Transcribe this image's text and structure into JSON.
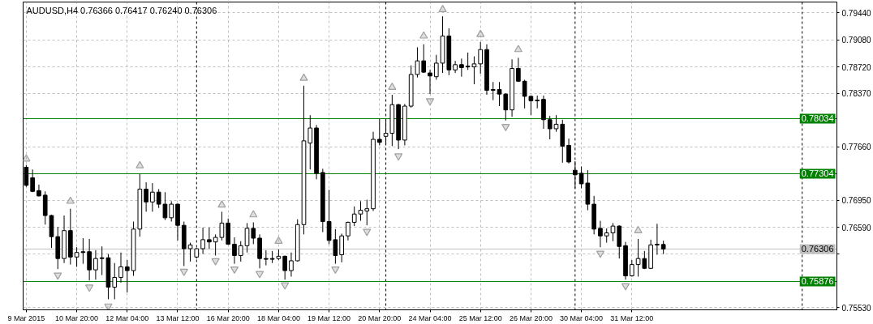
{
  "chart_data": {
    "type": "candlestick",
    "title": "AUDUSD,H4 0.76366 0.76417 0.76240 0.76306",
    "color": "#000000",
    "categories": [
      "9 Mar 2015",
      null,
      null,
      null,
      null,
      null,
      null,
      null,
      "10 Mar 20:00",
      null,
      null,
      null,
      null,
      null,
      null,
      null,
      "12 Mar 04:00",
      null,
      null,
      null,
      null,
      null,
      null,
      null,
      "13 Mar 12:00",
      null,
      null,
      null,
      null,
      null,
      null,
      null,
      "16 Mar 20:00",
      null,
      null,
      null,
      null,
      null,
      null,
      null,
      "18 Mar 04:00",
      null,
      null,
      null,
      null,
      null,
      null,
      null,
      "19 Mar 12:00",
      null,
      null,
      null,
      null,
      null,
      null,
      null,
      "20 Mar 20:00",
      null,
      null,
      null,
      null,
      null,
      null,
      null,
      "24 Mar 04:00",
      null,
      null,
      null,
      null,
      null,
      null,
      null,
      "25 Mar 12:00",
      null,
      null,
      null,
      null,
      null,
      null,
      null,
      "26 Mar 20:00",
      null,
      null,
      null,
      null,
      null,
      null,
      null,
      "30 Mar 04:00",
      null,
      null,
      null,
      null,
      null,
      null,
      null,
      "31 Mar 12:00",
      null,
      null,
      null,
      null,
      null,
      null,
      null,
      null,
      null,
      null,
      null,
      null,
      null,
      null,
      null,
      null,
      null,
      null,
      null,
      null,
      null,
      null,
      null,
      null,
      null,
      null,
      null,
      null,
      null,
      null,
      null,
      null
    ],
    "ylim": [
      0.755,
      0.7958
    ],
    "yticks": [
      {
        "value": 0.7944,
        "label": "0.79440"
      },
      {
        "value": 0.7908,
        "label": "0.79080"
      },
      {
        "value": 0.7872,
        "label": "0.78720"
      },
      {
        "value": 0.7837,
        "label": "0.78370"
      },
      {
        "value": 0.7766,
        "label": "0.77660"
      },
      {
        "value": 0.7695,
        "label": "0.76950"
      },
      {
        "value": 0.7659,
        "label": "0.76590"
      },
      {
        "value": 0.7624,
        "label": null
      },
      {
        "value": 0.7553,
        "label": "0.75530"
      }
    ],
    "grid": true,
    "ohlc": [
      [
        0.7739,
        0.7742,
        0.7713,
        0.7715
      ],
      [
        0.7725,
        0.7736,
        0.7706,
        0.7707
      ],
      [
        0.7708,
        0.7716,
        0.77,
        0.7701
      ],
      [
        0.7702,
        0.7707,
        0.7663,
        0.7675
      ],
      [
        0.7675,
        0.7676,
        0.7632,
        0.7647
      ],
      [
        0.7647,
        0.766,
        0.7604,
        0.7618
      ],
      [
        0.7618,
        0.7675,
        0.7612,
        0.7655
      ],
      [
        0.7655,
        0.7684,
        0.761,
        0.762
      ],
      [
        0.762,
        0.7633,
        0.7607,
        0.7626
      ],
      [
        0.7627,
        0.7645,
        0.7611,
        0.7626
      ],
      [
        0.7627,
        0.7644,
        0.7589,
        0.7603
      ],
      [
        0.7603,
        0.7629,
        0.759,
        0.7618
      ],
      [
        0.7619,
        0.7634,
        0.7596,
        0.7618
      ],
      [
        0.7619,
        0.7624,
        0.7564,
        0.758
      ],
      [
        0.758,
        0.7612,
        0.7564,
        0.7593
      ],
      [
        0.7593,
        0.7626,
        0.7586,
        0.7607
      ],
      [
        0.7607,
        0.7616,
        0.7573,
        0.7602
      ],
      [
        0.7602,
        0.7667,
        0.7595,
        0.7657
      ],
      [
        0.7657,
        0.773,
        0.7647,
        0.771
      ],
      [
        0.771,
        0.7719,
        0.768,
        0.7693
      ],
      [
        0.7693,
        0.7718,
        0.768,
        0.7706
      ],
      [
        0.7706,
        0.771,
        0.7685,
        0.769
      ],
      [
        0.769,
        0.7706,
        0.7669,
        0.7672
      ],
      [
        0.7672,
        0.7694,
        0.7667,
        0.769
      ],
      [
        0.769,
        0.7691,
        0.7642,
        0.7662
      ],
      [
        0.7662,
        0.7667,
        0.7608,
        0.7631
      ],
      [
        0.7631,
        0.7639,
        0.7614,
        0.7636
      ],
      [
        0.762,
        0.7632,
        0.7618,
        0.7631
      ],
      [
        0.7631,
        0.7659,
        0.7624,
        0.7643
      ],
      [
        0.7643,
        0.7659,
        0.7631,
        0.764
      ],
      [
        0.764,
        0.765,
        0.7622,
        0.7646
      ],
      [
        0.7646,
        0.768,
        0.7642,
        0.7665
      ],
      [
        0.7665,
        0.7671,
        0.7636,
        0.7637
      ],
      [
        0.7637,
        0.7646,
        0.7611,
        0.7622
      ],
      [
        0.7622,
        0.7641,
        0.7614,
        0.7635
      ],
      [
        0.7635,
        0.7665,
        0.7626,
        0.7658
      ],
      [
        0.7658,
        0.7666,
        0.7637,
        0.7645
      ],
      [
        0.7645,
        0.765,
        0.7605,
        0.7618
      ],
      [
        0.7618,
        0.7629,
        0.7609,
        0.7617
      ],
      [
        0.7618,
        0.7628,
        0.7612,
        0.7617
      ],
      [
        0.7618,
        0.763,
        0.7616,
        0.7621
      ],
      [
        0.7621,
        0.7622,
        0.759,
        0.7602
      ],
      [
        0.7602,
        0.7626,
        0.7594,
        0.7615
      ],
      [
        0.7615,
        0.767,
        0.7614,
        0.7663
      ],
      [
        0.7663,
        0.7847,
        0.765,
        0.7774
      ],
      [
        0.7771,
        0.7808,
        0.7736,
        0.7791
      ],
      [
        0.7791,
        0.7795,
        0.7723,
        0.7731
      ],
      [
        0.7732,
        0.7737,
        0.7653,
        0.7667
      ],
      [
        0.7667,
        0.7709,
        0.7637,
        0.7642
      ],
      [
        0.7643,
        0.7657,
        0.7611,
        0.7622
      ],
      [
        0.7623,
        0.7651,
        0.7613,
        0.7648
      ],
      [
        0.7648,
        0.7667,
        0.7642,
        0.7666
      ],
      [
        0.7666,
        0.7687,
        0.7661,
        0.7677
      ],
      [
        0.7677,
        0.7694,
        0.7668,
        0.7682
      ],
      [
        0.7681,
        0.7696,
        0.7662,
        0.7684
      ],
      [
        0.7684,
        0.7786,
        0.7681,
        0.7776
      ],
      [
        0.7776,
        0.7803,
        0.7768,
        0.7772
      ],
      [
        0.778,
        0.7803,
        0.7769,
        0.7784
      ],
      [
        0.7784,
        0.7835,
        0.7767,
        0.7822
      ],
      [
        0.7822,
        0.7823,
        0.7763,
        0.7775
      ],
      [
        0.7775,
        0.7823,
        0.7768,
        0.782
      ],
      [
        0.782,
        0.7874,
        0.7818,
        0.7862
      ],
      [
        0.7862,
        0.7898,
        0.7858,
        0.788
      ],
      [
        0.788,
        0.7902,
        0.7864,
        0.7865
      ],
      [
        0.7864,
        0.7868,
        0.7836,
        0.786
      ],
      [
        0.7859,
        0.7888,
        0.7855,
        0.7877
      ],
      [
        0.7877,
        0.7939,
        0.7864,
        0.7913
      ],
      [
        0.7913,
        0.7923,
        0.7861,
        0.7868
      ],
      [
        0.7868,
        0.788,
        0.7864,
        0.7875
      ],
      [
        0.7875,
        0.7883,
        0.7859,
        0.7871
      ],
      [
        0.7873,
        0.7891,
        0.7868,
        0.7872
      ],
      [
        0.7872,
        0.7886,
        0.7849,
        0.7876
      ],
      [
        0.7876,
        0.7905,
        0.7863,
        0.7895
      ],
      [
        0.7895,
        0.7902,
        0.7835,
        0.7841
      ],
      [
        0.7842,
        0.7852,
        0.7828,
        0.7841
      ],
      [
        0.7842,
        0.7852,
        0.782,
        0.7836
      ],
      [
        0.7836,
        0.7837,
        0.7801,
        0.7815
      ],
      [
        0.7815,
        0.7882,
        0.7806,
        0.787
      ],
      [
        0.787,
        0.7884,
        0.7852,
        0.7853
      ],
      [
        0.7853,
        0.7855,
        0.7817,
        0.7833
      ],
      [
        0.7833,
        0.7834,
        0.7808,
        0.7827
      ],
      [
        0.7828,
        0.7834,
        0.7817,
        0.7827
      ],
      [
        0.7829,
        0.7834,
        0.779,
        0.7802
      ],
      [
        0.7802,
        0.7807,
        0.7776,
        0.779
      ],
      [
        0.779,
        0.7808,
        0.7786,
        0.7796
      ],
      [
        0.7796,
        0.7802,
        0.7745,
        0.7767
      ],
      [
        0.7768,
        0.7777,
        0.7744,
        0.7746
      ],
      [
        0.7735,
        0.7747,
        0.7711,
        0.7729
      ],
      [
        0.7731,
        0.774,
        0.7711,
        0.7717
      ],
      [
        0.7718,
        0.7735,
        0.7682,
        0.769
      ],
      [
        0.769,
        0.7701,
        0.765,
        0.7657
      ],
      [
        0.7658,
        0.7668,
        0.7633,
        0.7648
      ],
      [
        0.7648,
        0.7658,
        0.7639,
        0.7652
      ],
      [
        0.7652,
        0.7665,
        0.7641,
        0.7661
      ],
      [
        0.7661,
        0.7662,
        0.7618,
        0.7634
      ],
      [
        0.7635,
        0.764,
        0.759,
        0.7595
      ],
      [
        0.7595,
        0.7616,
        0.7594,
        0.761
      ],
      [
        0.761,
        0.7644,
        0.7594,
        0.7618
      ],
      [
        0.7618,
        0.7628,
        0.7604,
        0.7605
      ],
      [
        0.7605,
        0.7643,
        0.7604,
        0.7636
      ],
      [
        0.7637,
        0.7664,
        0.7623,
        0.7636
      ],
      [
        0.76366,
        0.76417,
        0.7624,
        0.76306
      ],
      null,
      null,
      null,
      null,
      null,
      null,
      null,
      null,
      null,
      null,
      null,
      null,
      null,
      null,
      null,
      null,
      null,
      null,
      null,
      null,
      null,
      null,
      null,
      null,
      null,
      null,
      null
    ],
    "series": [
      {
        "type": "scatter",
        "marker": "triangle",
        "color": "#a0a0a0",
        "values": [
          0.775,
          null,
          null,
          null,
          null,
          null,
          null,
          0.7694,
          null,
          null,
          null,
          null,
          null,
          null,
          null,
          null,
          null,
          null,
          0.7741,
          null,
          null,
          null,
          null,
          null,
          null,
          null,
          null,
          null,
          null,
          null,
          null,
          0.7689,
          null,
          null,
          null,
          null,
          0.7676,
          null,
          null,
          null,
          0.7641,
          null,
          null,
          null,
          0.7857,
          null,
          null,
          null,
          null,
          null,
          null,
          null,
          null,
          null,
          null,
          null,
          null,
          null,
          0.7845,
          null,
          null,
          null,
          null,
          0.7913,
          null,
          null,
          0.7948,
          null,
          null,
          null,
          null,
          null,
          0.7915,
          null,
          null,
          null,
          null,
          null,
          0.7895,
          null,
          null,
          null,
          null,
          null,
          null,
          null,
          null,
          null,
          null,
          null,
          null,
          null,
          null,
          null,
          null,
          null,
          null,
          0.7655,
          null,
          null,
          null,
          null,
          null,
          null,
          null,
          null,
          null,
          null,
          null,
          null,
          null,
          null,
          null,
          null,
          null,
          null,
          null,
          null,
          null,
          null,
          null,
          null,
          null,
          null,
          null,
          null,
          null,
          null,
          null
        ]
      },
      {
        "type": "scatter",
        "marker": "triangle",
        "color": "#a0a0a0",
        "values": [
          null,
          null,
          null,
          null,
          null,
          0.7596,
          null,
          null,
          null,
          null,
          0.758,
          null,
          null,
          0.7555,
          null,
          null,
          null,
          null,
          null,
          null,
          null,
          null,
          null,
          null,
          null,
          0.7601,
          null,
          null,
          null,
          null,
          0.7615,
          null,
          null,
          0.7604,
          null,
          null,
          null,
          0.7598,
          null,
          null,
          null,
          0.7583,
          null,
          null,
          null,
          null,
          null,
          null,
          null,
          0.7604,
          null,
          null,
          null,
          null,
          0.7654,
          null,
          null,
          null,
          null,
          0.7754,
          null,
          null,
          null,
          null,
          0.7827,
          null,
          null,
          null,
          null,
          null,
          null,
          null,
          null,
          null,
          null,
          null,
          0.7793,
          null,
          null,
          null,
          null,
          null,
          null,
          null,
          null,
          null,
          null,
          null,
          null,
          null,
          null,
          0.7625,
          null,
          null,
          null,
          0.7582,
          null,
          null,
          null,
          null,
          null,
          null,
          null,
          null,
          null,
          null,
          null,
          null,
          null,
          null,
          null,
          null,
          null,
          null,
          null,
          null,
          null,
          null,
          null,
          null,
          null,
          null,
          null,
          null,
          null,
          null,
          null,
          null,
          null
        ]
      }
    ],
    "ref_lines": [
      {
        "axis": "y",
        "value": 0.78034,
        "label": "0.78034",
        "color": "#008000"
      },
      {
        "axis": "y",
        "value": 0.77304,
        "label": "0.77304",
        "color": "#008000"
      },
      {
        "axis": "y",
        "value": 0.75876,
        "label": "0.75876",
        "color": "#008000"
      },
      {
        "axis": "y",
        "value": 0.76306,
        "label": "0.76306",
        "color": "#c0c0c0"
      }
    ]
  }
}
